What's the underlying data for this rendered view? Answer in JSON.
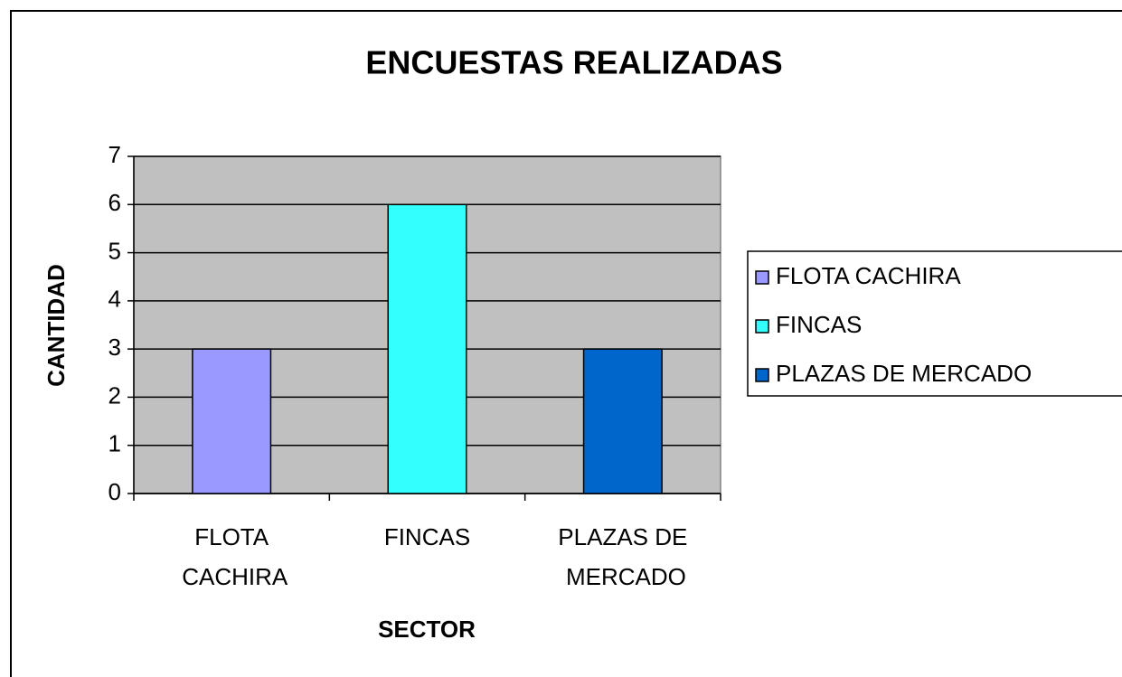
{
  "chart_data": {
    "type": "bar",
    "title": "ENCUESTAS REALIZADAS",
    "x_label": "SECTOR",
    "y_label": "CANTIDAD",
    "categories": [
      "FLOTA CACHIRA",
      "FINCAS",
      "PLAZAS DE MERCADO"
    ],
    "values": [
      3,
      6,
      3
    ],
    "colors": [
      "#9999ff",
      "#33ffff",
      "#0066cc"
    ],
    "ylim": [
      0,
      7
    ],
    "yticks": [
      0,
      1,
      2,
      3,
      4,
      5,
      6,
      7
    ],
    "grid": true,
    "legend": "right"
  }
}
